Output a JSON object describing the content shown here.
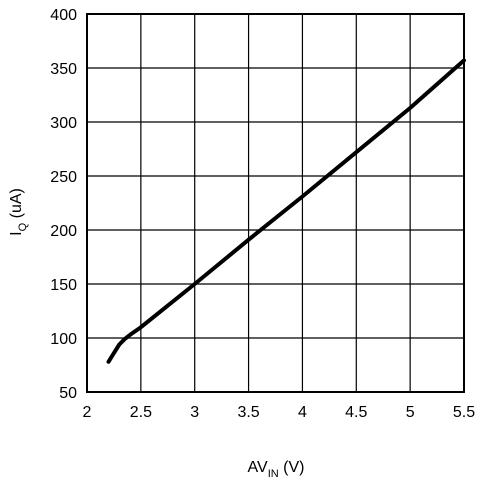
{
  "chart_data": {
    "type": "line",
    "title": "",
    "xlabel": {
      "main": "AV",
      "sub": "IN",
      "unit": " (V)"
    },
    "ylabel": {
      "main": "I",
      "sub": "Q",
      "unit": " (uA)"
    },
    "xlim": [
      2,
      5.5
    ],
    "ylim": [
      50,
      400
    ],
    "xticks": [
      2,
      2.5,
      3,
      3.5,
      4,
      4.5,
      5,
      5.5
    ],
    "xtick_labels": [
      "2",
      "2.5",
      "3",
      "3.5",
      "4",
      "4.5",
      "5",
      "5.5"
    ],
    "yticks": [
      50,
      100,
      150,
      200,
      250,
      300,
      350,
      400
    ],
    "ytick_labels": [
      "50",
      "100",
      "150",
      "200",
      "250",
      "300",
      "350",
      "400"
    ],
    "grid": true,
    "series": [
      {
        "color": "#000000",
        "x": [
          2.2,
          2.25,
          2.3,
          2.35,
          2.4,
          2.5,
          2.7,
          3.0,
          3.5,
          4.0,
          4.5,
          5.0,
          5.5
        ],
        "y": [
          78,
          86,
          94,
          99,
          103,
          110,
          126,
          150,
          191,
          231,
          272,
          313,
          357
        ]
      }
    ]
  }
}
